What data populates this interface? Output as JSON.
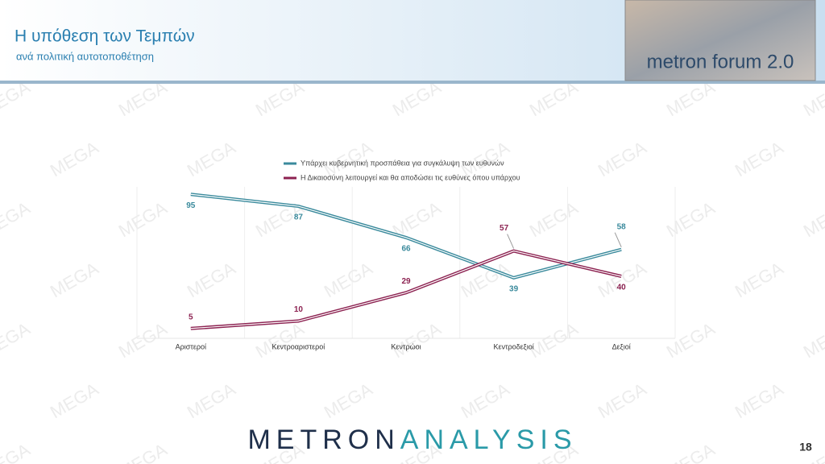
{
  "header": {
    "title": "Η υπόθεση των Τεμπών",
    "subtitle": "ανά πολιτική αυτοτοποθέτηση",
    "logo": "metron forum 2.0"
  },
  "chart_data": {
    "type": "line",
    "categories": [
      "Αριστεροί",
      "Κεντροαριστεροί",
      "Κεντρώοι",
      "Κεντροδεξιοί",
      "Δεξιοί"
    ],
    "series": [
      {
        "name": "Υπάρχει κυβερνητική προσπάθεια για συγκάλυψη των ευθυνών",
        "color": "#3a8a9c",
        "values": [
          95,
          87,
          66,
          39,
          58
        ]
      },
      {
        "name": "Η Δικαιοσύνη λειτουργεί και θα αποδώσει τις ευθύνες όπου υπάρχου",
        "color": "#8c2251",
        "values": [
          5,
          10,
          29,
          57,
          40
        ]
      }
    ],
    "ylim": [
      0,
      100
    ]
  },
  "footer": {
    "brand_left": "METRON",
    "brand_right": "ANALYSIS",
    "page": "18"
  },
  "watermark": "MEGA"
}
